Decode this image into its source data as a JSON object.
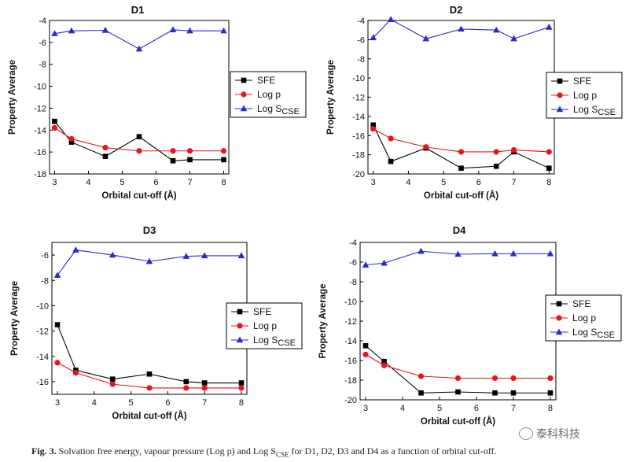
{
  "chart_data": [
    {
      "type": "line",
      "title": "D1",
      "xlabel": "Orbital cut-off (Å)",
      "ylabel": "Property Average",
      "x": [
        3,
        3.5,
        4.5,
        5.5,
        6.5,
        7,
        8
      ],
      "xticks": [
        3,
        4,
        5,
        6,
        7,
        8
      ],
      "ylim": [
        -18,
        -4
      ],
      "yticks": [
        -18,
        -16,
        -14,
        -12,
        -10,
        -8,
        -6,
        -4
      ],
      "legend_position": "right-middle",
      "series": [
        {
          "name": "SFE",
          "marker": "square",
          "color": "#000000",
          "values": [
            -13.2,
            -15.1,
            -16.4,
            -14.6,
            -16.8,
            -16.7,
            -16.7
          ]
        },
        {
          "name": "Log p",
          "marker": "circle",
          "color": "#e8141b",
          "values": [
            -13.8,
            -14.8,
            -15.6,
            -15.9,
            -15.9,
            -15.9,
            -15.9
          ]
        },
        {
          "name": "Log S",
          "name_sub": "CSE",
          "marker": "triangle",
          "color": "#2a2ad4",
          "values": [
            -5.2,
            -4.95,
            -4.9,
            -6.6,
            -4.85,
            -4.95,
            -4.95
          ]
        }
      ]
    },
    {
      "type": "line",
      "title": "D2",
      "xlabel": "Orbital cut-off (Å)",
      "ylabel": "Property Average",
      "x": [
        3,
        3.5,
        4.5,
        5.5,
        6.5,
        7,
        8
      ],
      "xticks": [
        3,
        4,
        5,
        6,
        7,
        8
      ],
      "ylim": [
        -20,
        -4
      ],
      "yticks": [
        -20,
        -18,
        -16,
        -14,
        -12,
        -10,
        -8,
        -6,
        -4
      ],
      "legend_position": "right-middle",
      "series": [
        {
          "name": "SFE",
          "marker": "square",
          "color": "#000000",
          "values": [
            -14.9,
            -18.7,
            -17.3,
            -19.4,
            -19.2,
            -17.7,
            -19.4
          ]
        },
        {
          "name": "Log p",
          "marker": "circle",
          "color": "#e8141b",
          "values": [
            -15.3,
            -16.3,
            -17.2,
            -17.7,
            -17.7,
            -17.5,
            -17.7
          ]
        },
        {
          "name": "Log S",
          "name_sub": "CSE",
          "marker": "triangle",
          "color": "#2a2ad4",
          "values": [
            -5.8,
            -3.9,
            -5.9,
            -4.9,
            -5.0,
            -5.9,
            -4.7
          ]
        }
      ]
    },
    {
      "type": "line",
      "title": "D3",
      "xlabel": "Orbital cut-off (Å)",
      "ylabel": "Property Average",
      "x": [
        3,
        3.5,
        4.5,
        5.5,
        6.5,
        7,
        8
      ],
      "xticks": [
        3,
        4,
        5,
        6,
        7,
        8
      ],
      "ylim": [
        -17,
        -5
      ],
      "yticks": [
        -16,
        -14,
        -12,
        -10,
        -8,
        -6
      ],
      "legend_position": "right-middle",
      "series": [
        {
          "name": "SFE",
          "marker": "square",
          "color": "#000000",
          "values": [
            -11.5,
            -15.1,
            -15.8,
            -15.4,
            -16.0,
            -16.1,
            -16.1
          ]
        },
        {
          "name": "Log p",
          "marker": "circle",
          "color": "#e8141b",
          "values": [
            -14.5,
            -15.3,
            -16.2,
            -16.5,
            -16.5,
            -16.5,
            -16.5
          ]
        },
        {
          "name": "Log S",
          "name_sub": "CSE",
          "marker": "triangle",
          "color": "#2a2ad4",
          "values": [
            -7.6,
            -5.6,
            -6.0,
            -6.5,
            -6.1,
            -6.05,
            -6.05
          ]
        }
      ]
    },
    {
      "type": "line",
      "title": "D4",
      "xlabel": "Orbital cut-off (Å)",
      "ylabel": "Property Average",
      "x": [
        3,
        3.5,
        4.5,
        5.5,
        6.5,
        7,
        8
      ],
      "xticks": [
        3,
        4,
        5,
        6,
        7,
        8
      ],
      "ylim": [
        -20,
        -4
      ],
      "yticks": [
        -20,
        -18,
        -16,
        -14,
        -12,
        -10,
        -8,
        -6,
        -4
      ],
      "legend_position": "right-middle",
      "series": [
        {
          "name": "SFE",
          "marker": "square",
          "color": "#000000",
          "values": [
            -14.5,
            -16.1,
            -19.3,
            -19.2,
            -19.3,
            -19.3,
            -19.3
          ]
        },
        {
          "name": "Log p",
          "marker": "circle",
          "color": "#e8141b",
          "values": [
            -15.4,
            -16.5,
            -17.6,
            -17.8,
            -17.8,
            -17.8,
            -17.8
          ]
        },
        {
          "name": "Log S",
          "name_sub": "CSE",
          "marker": "triangle",
          "color": "#2a2ad4",
          "values": [
            -6.3,
            -6.1,
            -4.9,
            -5.2,
            -5.15,
            -5.15,
            -5.15
          ]
        }
      ]
    }
  ],
  "caption": {
    "label": "Fig. 3.",
    "text_before_sub": " Solvation free energy, vapour pressure (Log p) and Log S",
    "sub": "CSE",
    "text_after_sub": " for D1, D2, D3 and D4 as a function of orbital cut-off."
  },
  "watermark": "泰科科技"
}
